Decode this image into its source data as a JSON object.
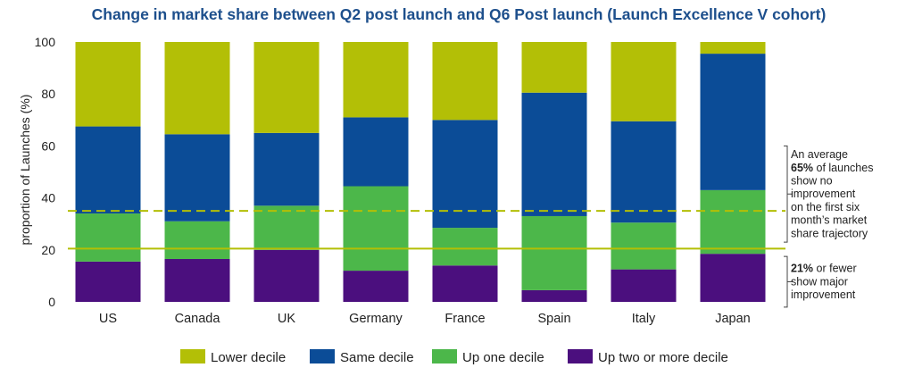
{
  "chart_data": {
    "type": "bar",
    "stacked": true,
    "title": "Change in market share between Q2 post launch and Q6 Post launch (Launch Excellence V cohort)",
    "ylabel": "proportion of Launches (%)",
    "xlabel": "",
    "ylim": [
      0,
      100
    ],
    "yticks": [
      "0",
      "20",
      "40",
      "60",
      "80",
      "100"
    ],
    "categories": [
      "US",
      "Canada",
      "UK",
      "Germany",
      "France",
      "Spain",
      "Italy",
      "Japan"
    ],
    "series": [
      {
        "name": "Up two or more decile",
        "color": "#4b0f7e",
        "values": [
          15.5,
          16.5,
          20,
          12,
          14,
          4.5,
          12.5,
          18.5
        ]
      },
      {
        "name": "Up one decile",
        "color": "#4cb74a",
        "values": [
          18.5,
          14.5,
          17,
          32.5,
          14.5,
          28.5,
          18,
          24.5
        ]
      },
      {
        "name": "Same decile",
        "color": "#0b4c97",
        "values": [
          33.5,
          33.5,
          28,
          26.5,
          41.5,
          47.5,
          39,
          52.5
        ]
      },
      {
        "name": "Lower decile",
        "color": "#b3bf06",
        "values": [
          32.5,
          35.5,
          35,
          29,
          30,
          19.5,
          30.5,
          4.5
        ]
      }
    ],
    "legend_order": [
      "Lower decile",
      "Same decile",
      "Up one decile",
      "Up two or more decile"
    ],
    "reference_lines": [
      {
        "value": 35,
        "style": "dashed",
        "color": "#b3bf06"
      },
      {
        "value": 20.5,
        "style": "solid",
        "color": "#b3bf06"
      }
    ],
    "annotations": [
      {
        "id": "top",
        "range": [
          23,
          60
        ],
        "lines": [
          {
            "plain": "An average"
          },
          {
            "bold": "65%",
            "plain": " of launches"
          },
          {
            "plain": "show no"
          },
          {
            "plain": "improvement"
          },
          {
            "plain": "on the first six"
          },
          {
            "plain": "month’s market"
          },
          {
            "plain": "share trajectory"
          }
        ]
      },
      {
        "id": "bottom",
        "range": [
          -2,
          17.5
        ],
        "lines": [
          {
            "bold": "21%",
            "plain": " or fewer"
          },
          {
            "plain": "show major"
          },
          {
            "plain": "improvement"
          }
        ]
      }
    ],
    "legend_position": "bottom",
    "grid": false
  }
}
